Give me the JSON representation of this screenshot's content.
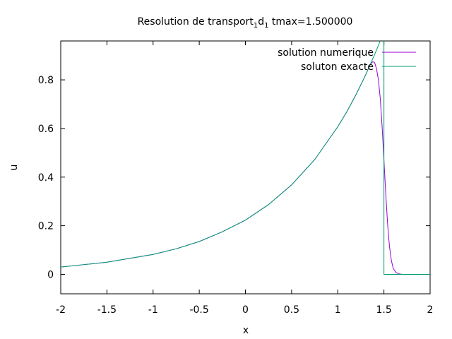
{
  "chart_data": {
    "type": "line",
    "title_main": "Resolution de transport",
    "title_sub1": "1",
    "title_mid": "d",
    "title_sub2": "1",
    "title_tail": " tmax=1.500000",
    "xlabel": "x",
    "ylabel": "u",
    "xlim": [
      -2,
      2
    ],
    "ylim": [
      -0.08,
      0.96
    ],
    "xticks": [
      -2,
      -1.5,
      -1,
      -0.5,
      0,
      0.5,
      1,
      1.5,
      2
    ],
    "xtick_labels": [
      "-2",
      "-1.5",
      "-1",
      "-0.5",
      "0",
      "0.5",
      "1",
      "1.5",
      "2"
    ],
    "yticks": [
      0,
      0.2,
      0.4,
      0.6,
      0.8
    ],
    "ytick_labels": [
      "0",
      "0.2",
      "0.4",
      "0.6",
      "0.8"
    ],
    "grid": false,
    "legend_position": "top-right",
    "series": [
      {
        "name": "solution numerique",
        "color": "#9400d3",
        "x": [
          -2,
          -1.75,
          -1.5,
          -1.25,
          -1,
          -0.75,
          -0.5,
          -0.25,
          0,
          0.25,
          0.5,
          0.75,
          1,
          1.1,
          1.2,
          1.3,
          1.35,
          1.38,
          1.4,
          1.42,
          1.44,
          1.46,
          1.48,
          1.5,
          1.52,
          1.54,
          1.56,
          1.58,
          1.6,
          1.63,
          1.66,
          1.7,
          1.8,
          1.9,
          2
        ],
        "y": [
          0.03,
          0.04,
          0.05,
          0.066,
          0.082,
          0.105,
          0.135,
          0.175,
          0.223,
          0.287,
          0.368,
          0.472,
          0.607,
          0.67,
          0.741,
          0.819,
          0.863,
          0.875,
          0.87,
          0.845,
          0.8,
          0.725,
          0.61,
          0.47,
          0.33,
          0.205,
          0.115,
          0.058,
          0.025,
          0.008,
          0.002,
          0.0,
          0.0,
          0.0,
          0.0
        ]
      },
      {
        "name": "soluton exacte",
        "color": "#009e73",
        "x": [
          -2,
          -1.75,
          -1.5,
          -1.25,
          -1,
          -0.75,
          -0.5,
          -0.25,
          0,
          0.25,
          0.5,
          0.75,
          1,
          1.1,
          1.2,
          1.3,
          1.4,
          1.45,
          1.5,
          1.5,
          1.6,
          1.7,
          1.8,
          1.9,
          2
        ],
        "y": [
          0.03,
          0.04,
          0.05,
          0.066,
          0.082,
          0.105,
          0.135,
          0.175,
          0.223,
          0.287,
          0.368,
          0.472,
          0.607,
          0.67,
          0.741,
          0.819,
          0.905,
          0.951,
          1.0,
          0.0,
          0.0,
          0.0,
          0.0,
          0.0,
          0.0
        ]
      }
    ]
  }
}
